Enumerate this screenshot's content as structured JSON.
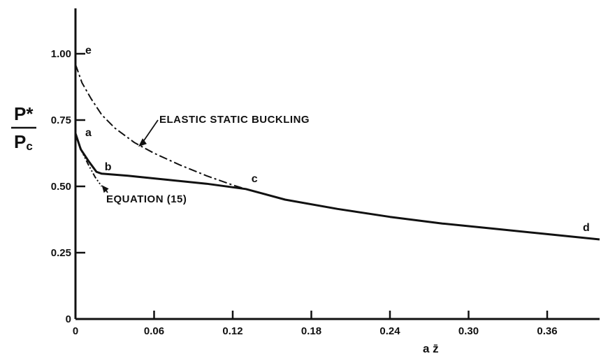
{
  "chart_data": {
    "type": "line",
    "title": "",
    "xlabel": "a z̄",
    "ylabel_numerator": "P*",
    "ylabel_denominator": "P",
    "ylabel_denominator_sub": "c",
    "xlim": [
      0,
      0.4
    ],
    "ylim": [
      0,
      1.15
    ],
    "x_ticks": [
      0,
      0.06,
      0.12,
      0.18,
      0.24,
      0.3,
      0.36
    ],
    "x_tick_labels": [
      "0",
      "0.06",
      "0.12",
      "0.18",
      "0.24",
      "0.30",
      "0.36"
    ],
    "y_ticks": [
      0,
      0.25,
      0.5,
      0.75,
      1.0
    ],
    "y_tick_labels": [
      "0",
      "0.25",
      "0.50",
      "0.75",
      "1.00"
    ],
    "grid": false,
    "legend": "none",
    "series": [
      {
        "style": "solid",
        "points": [
          [
            0,
            0.7
          ],
          [
            0.004,
            0.64
          ],
          [
            0.01,
            0.595
          ],
          [
            0.016,
            0.555
          ],
          [
            0.02,
            0.548
          ],
          [
            0.04,
            0.54
          ],
          [
            0.07,
            0.525
          ],
          [
            0.1,
            0.51
          ],
          [
            0.13,
            0.49
          ],
          [
            0.16,
            0.45
          ],
          [
            0.2,
            0.415
          ],
          [
            0.24,
            0.385
          ],
          [
            0.28,
            0.36
          ],
          [
            0.32,
            0.34
          ],
          [
            0.36,
            0.32
          ],
          [
            0.4,
            0.3
          ]
        ]
      },
      {
        "style": "dash-dot",
        "points": [
          [
            0,
            0.96
          ],
          [
            0.005,
            0.89
          ],
          [
            0.012,
            0.83
          ],
          [
            0.02,
            0.77
          ],
          [
            0.03,
            0.72
          ],
          [
            0.045,
            0.665
          ],
          [
            0.06,
            0.625
          ],
          [
            0.08,
            0.58
          ],
          [
            0.1,
            0.54
          ],
          [
            0.12,
            0.505
          ],
          [
            0.13,
            0.49
          ]
        ]
      },
      {
        "style": "dash-dot-dot",
        "points": [
          [
            0,
            0.7
          ],
          [
            0.005,
            0.63
          ],
          [
            0.01,
            0.58
          ],
          [
            0.015,
            0.535
          ],
          [
            0.02,
            0.5
          ]
        ]
      }
    ],
    "point_labels": [
      {
        "text": "e",
        "x": 0,
        "y": 1.0
      },
      {
        "text": "a",
        "x": 0,
        "y": 0.7
      },
      {
        "text": "b",
        "x": 0.018,
        "y": 0.55
      },
      {
        "text": "c",
        "x": 0.13,
        "y": 0.49
      },
      {
        "text": "d",
        "x": 0.4,
        "y": 0.3
      }
    ],
    "annotations": [
      {
        "text": "ELASTIC STATIC BUCKLING",
        "target_x": 0.048,
        "target_y": 0.655
      },
      {
        "text": "EQUATION (15)",
        "target_x": 0.019,
        "target_y": 0.51
      }
    ]
  }
}
